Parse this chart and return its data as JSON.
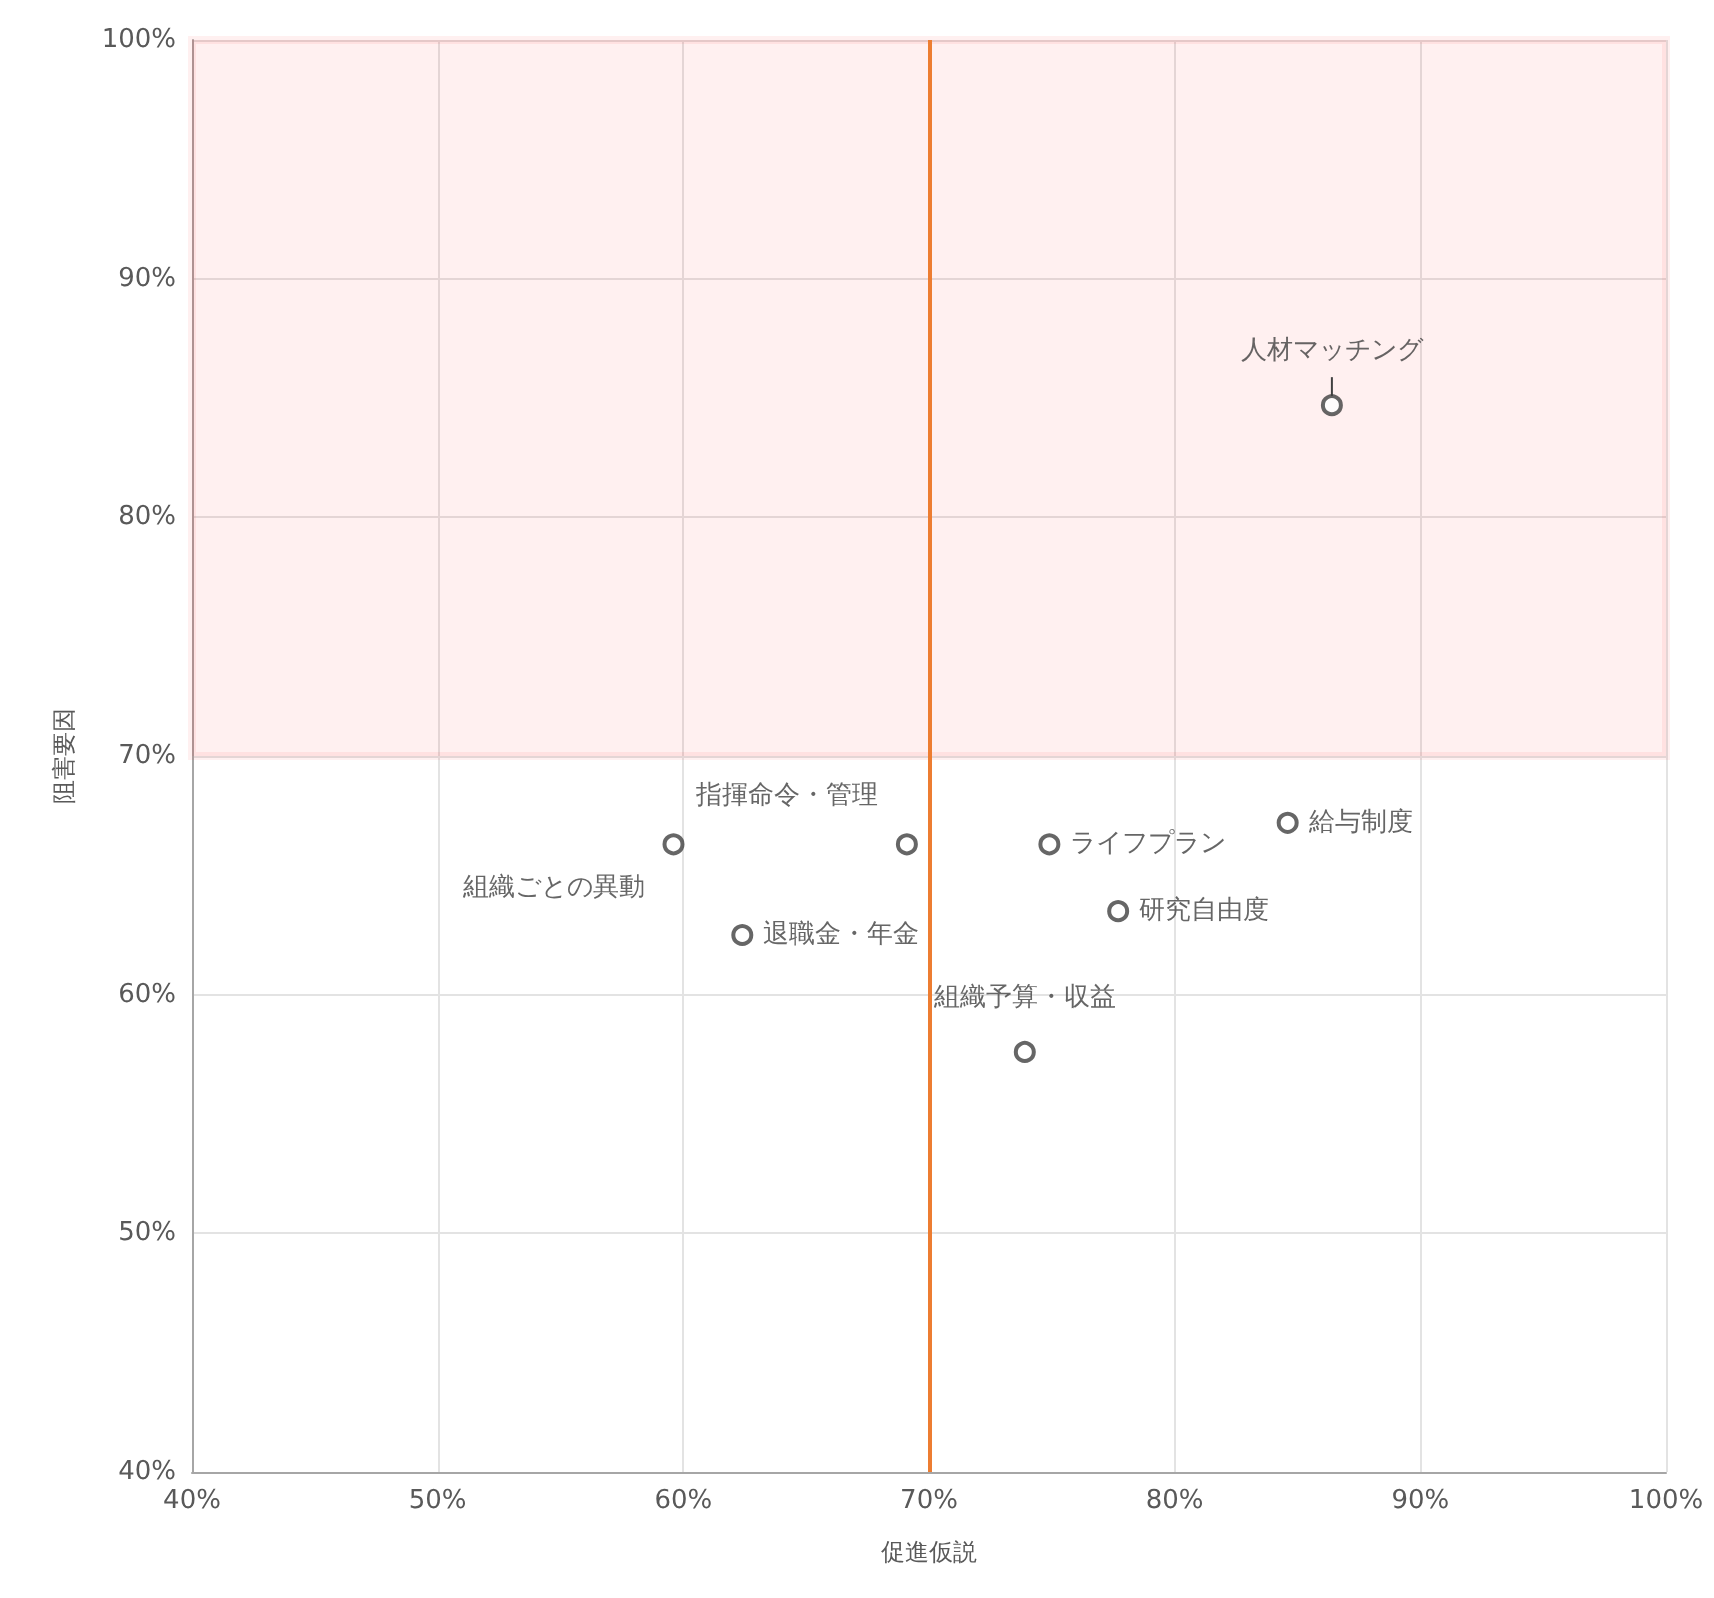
{
  "chart_data": {
    "type": "scatter",
    "xlabel": "促進仮説",
    "ylabel": "阻害要因",
    "series": [
      {
        "name": "人材マッチング",
        "color": "#404040",
        "x": [
          86.4
        ],
        "values": [
          84.7
        ]
      },
      {
        "name": "給与制度",
        "color": "#404040",
        "x": [
          84.6
        ],
        "values": [
          67.2
        ]
      },
      {
        "name": "ライフプラン",
        "color": "#404040",
        "x": [
          74.9
        ],
        "values": [
          66.3
        ]
      },
      {
        "name": "指揮命令・管理",
        "color": "#404040",
        "x": [
          69.1
        ],
        "values": [
          66.3
        ]
      },
      {
        "name": "組織ごとの異動",
        "color": "#404040",
        "x": [
          59.6
        ],
        "values": [
          66.3
        ]
      },
      {
        "name": "退職金・年金",
        "color": "#404040",
        "x": [
          62.4
        ],
        "values": [
          62.5
        ]
      },
      {
        "name": "研究自由度",
        "color": "#404040",
        "x": [
          77.7
        ],
        "values": [
          63.5
        ]
      },
      {
        "name": "組織予算・収益",
        "color": "#404040",
        "x": [
          73.9
        ],
        "values": [
          57.6
        ]
      }
    ],
    "xlim": [
      40,
      100
    ],
    "xticks": [
      {
        "value": 40,
        "label": "40%"
      },
      {
        "value": 50,
        "label": "50%"
      },
      {
        "value": 60,
        "label": "60%"
      },
      {
        "value": 70,
        "label": "70%"
      },
      {
        "value": 80,
        "label": "80%"
      },
      {
        "value": 90,
        "label": "90%"
      },
      {
        "value": 100,
        "label": "100%"
      }
    ],
    "ylim": [
      40,
      100
    ],
    "yticks": [
      {
        "value": 40,
        "label": "40%"
      },
      {
        "value": 50,
        "label": "50%"
      },
      {
        "value": 60,
        "label": "60%"
      },
      {
        "value": 70,
        "label": "70%"
      },
      {
        "value": 80,
        "label": "80%"
      },
      {
        "value": 90,
        "label": "90%"
      },
      {
        "value": 100,
        "label": "100%"
      }
    ],
    "ref_lines": [
      {
        "axis": "x",
        "value": 70,
        "color": "#ed7d31"
      }
    ],
    "bands": [
      {
        "axis": "y",
        "from": 70,
        "to": 100,
        "color": "#ff0000"
      }
    ],
    "grid": true,
    "legend": false,
    "marker": "circle"
  }
}
